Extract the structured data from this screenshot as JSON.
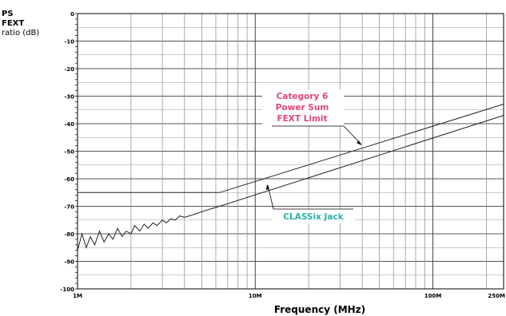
{
  "chart_data": {
    "type": "line",
    "title": "",
    "ylabel_lines": [
      "PS",
      "FEXT",
      "ratio (dB)"
    ],
    "xlabel": "Frequency (MHz)",
    "x_scale": "log",
    "xlim": [
      1,
      250
    ],
    "ylim": [
      -100,
      0
    ],
    "x_tick_labels": [
      {
        "value": 1,
        "label": "1M"
      },
      {
        "value": 10,
        "label": "10M"
      },
      {
        "value": 100,
        "label": "100M"
      },
      {
        "value": 250,
        "label": "250M"
      }
    ],
    "y_ticks": [
      0,
      -10,
      -20,
      -30,
      -40,
      -50,
      -60,
      -70,
      -80,
      -90,
      -100
    ],
    "y_tick_labels": [
      "0",
      "-10",
      "-20",
      "-30",
      "-40",
      "-50",
      "-60",
      "-70",
      "-80",
      "-90",
      "-100"
    ],
    "grid": true,
    "series": [
      {
        "name": "Category 6 Power Sum FEXT Limit",
        "label_lines": [
          "Category 6",
          "Power Sum",
          "FEXT Limit"
        ],
        "color": "#e0457b",
        "x": [
          1,
          6.3,
          250
        ],
        "values": [
          -65,
          -65,
          -32.9
        ]
      },
      {
        "name": "CLASSix Jack",
        "label_lines": [
          "CLASSix Jack"
        ],
        "color": "#2ab0a8",
        "x": [
          1,
          1.06,
          1.12,
          1.18,
          1.25,
          1.33,
          1.41,
          1.5,
          1.58,
          1.68,
          1.78,
          1.88,
          2.0,
          2.1,
          2.24,
          2.37,
          2.5,
          2.66,
          2.8,
          3.0,
          3.16,
          3.35,
          3.55,
          3.76,
          4.0,
          4.5,
          5.0,
          5.6,
          6.3,
          250
        ],
        "values": [
          -86,
          -80,
          -85,
          -81,
          -84,
          -79,
          -83,
          -80,
          -82,
          -78,
          -81,
          -79,
          -80,
          -77,
          -79,
          -76.5,
          -78,
          -76,
          -77,
          -75,
          -76,
          -74.5,
          -75,
          -73.5,
          -74,
          -73,
          -72,
          -71,
          -70,
          -37
        ]
      }
    ]
  }
}
